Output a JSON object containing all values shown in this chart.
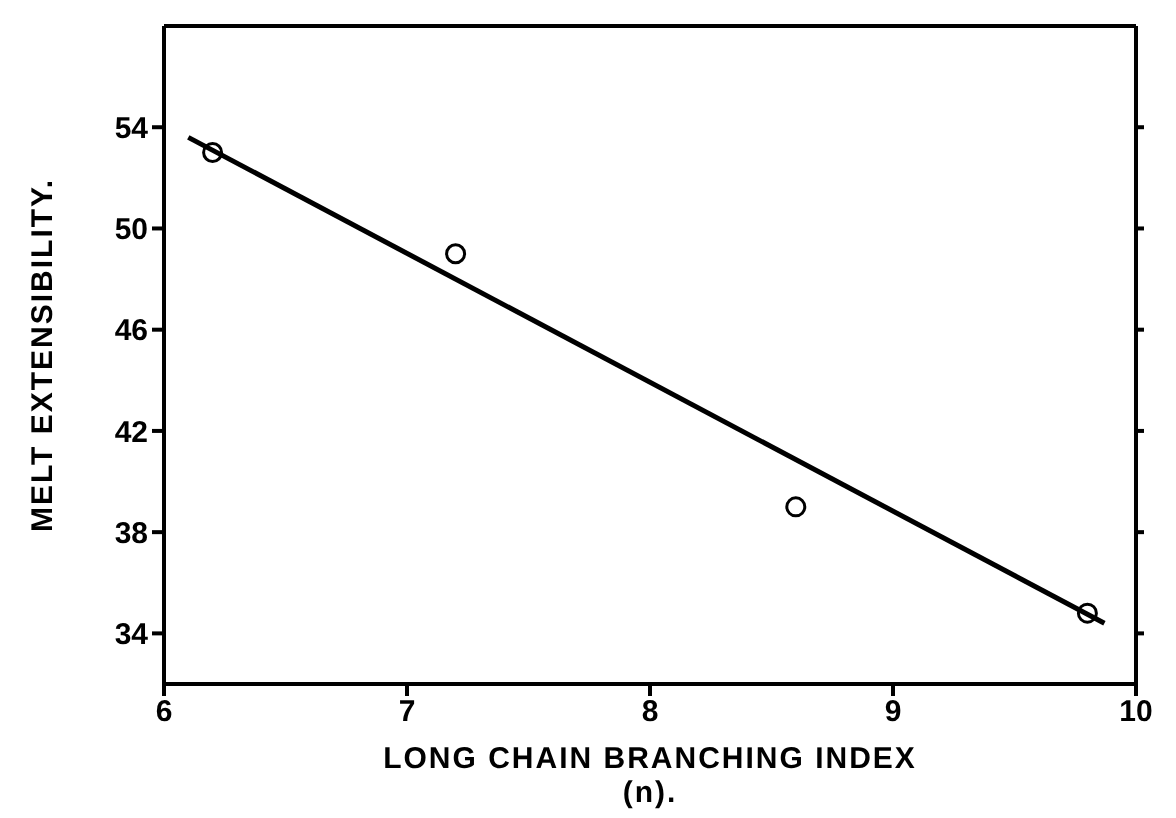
{
  "chart_data": {
    "type": "scatter",
    "xlabel": "LONG CHAIN BRANCHING INDEX\n(n).",
    "ylabel": "MELT EXTENSIBILITY.",
    "xlim": [
      6,
      10
    ],
    "xticks": [
      6,
      7,
      8,
      9,
      10
    ],
    "ylim": [
      32,
      58
    ],
    "yticks": [
      34,
      38,
      42,
      46,
      50,
      54
    ],
    "grid": false,
    "series": [
      {
        "marker": "circle",
        "color": "#000000",
        "x": [
          6.2,
          7.2,
          8.6,
          9.8
        ],
        "values": [
          53,
          49,
          39,
          34.8
        ]
      },
      {
        "type": "line",
        "color": "#000000",
        "x": [
          6.1,
          9.87
        ],
        "values": [
          53.6,
          34.4
        ],
        "line_style": "solid"
      }
    ]
  }
}
